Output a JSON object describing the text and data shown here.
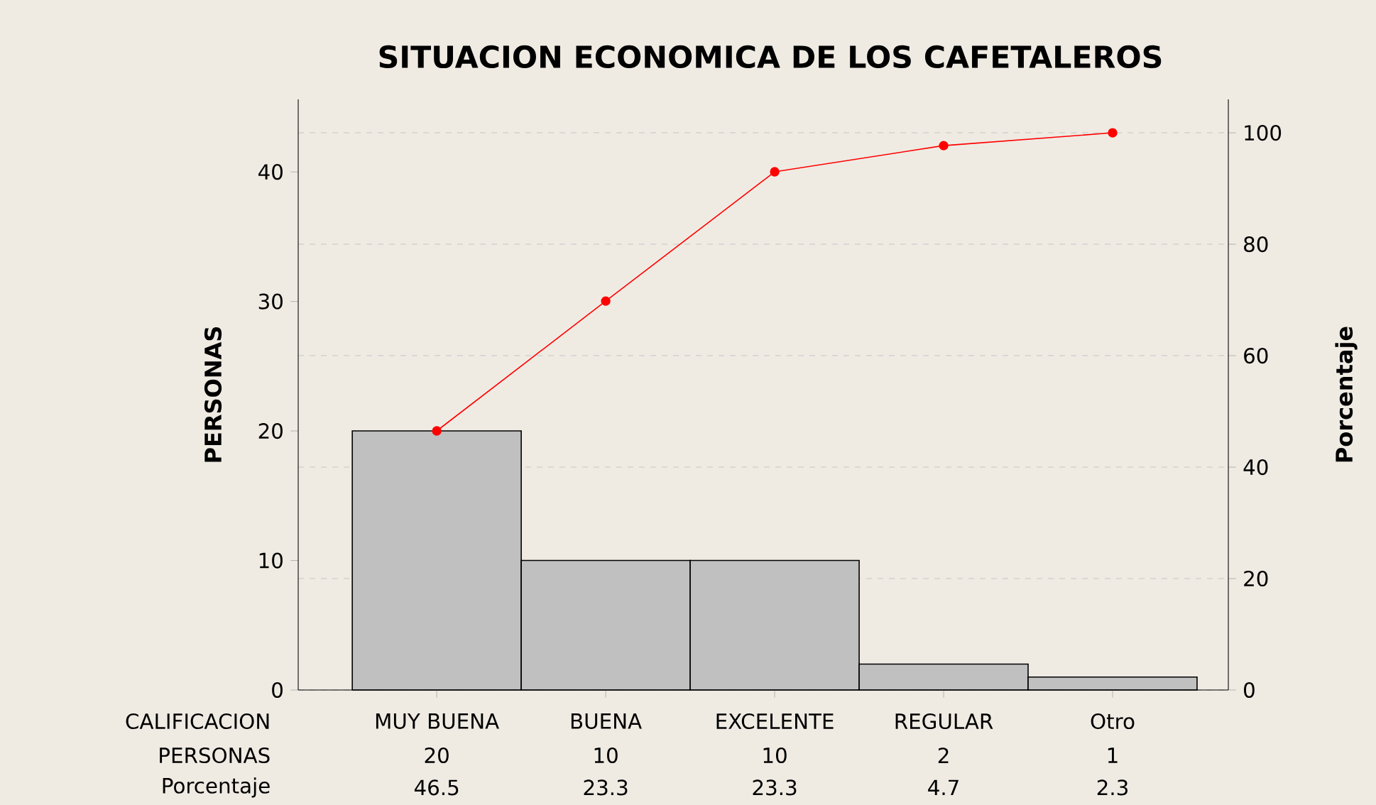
{
  "chart_data": {
    "type": "bar",
    "title": "SITUACION ECONOMICA DE LOS CAFETALEROS",
    "xlabel": "CALIFICACION",
    "ylabel": "PERSONAS",
    "y2label": "Porcentaje",
    "categories": [
      "MUY BUENA",
      "BUENA",
      "EXCELENTE",
      "REGULAR",
      "Otro"
    ],
    "series": [
      {
        "color": "#c0c0c0",
        "values": [
          20,
          10,
          10,
          2,
          1
        ],
        "value_labels": [
          "20",
          "10",
          "10",
          "2",
          "1"
        ]
      },
      {
        "type": "line",
        "axis": "y2",
        "color": "#ff0000",
        "marker": "circle",
        "values": [
          46.5,
          69.8,
          93.0,
          97.7,
          100
        ]
      }
    ],
    "annotations": [
      "PERSONAS",
      "Porcentaje",
      "46.5",
      "23.3",
      "23.3",
      "4.7",
      "2.3"
    ],
    "ylim": [
      0,
      45.6
    ],
    "yticks": [
      0,
      10,
      20,
      30,
      40
    ],
    "y2lim": [
      0,
      106
    ],
    "y2ticks": [
      0,
      20,
      40,
      60,
      80,
      100
    ],
    "grid": "y"
  }
}
